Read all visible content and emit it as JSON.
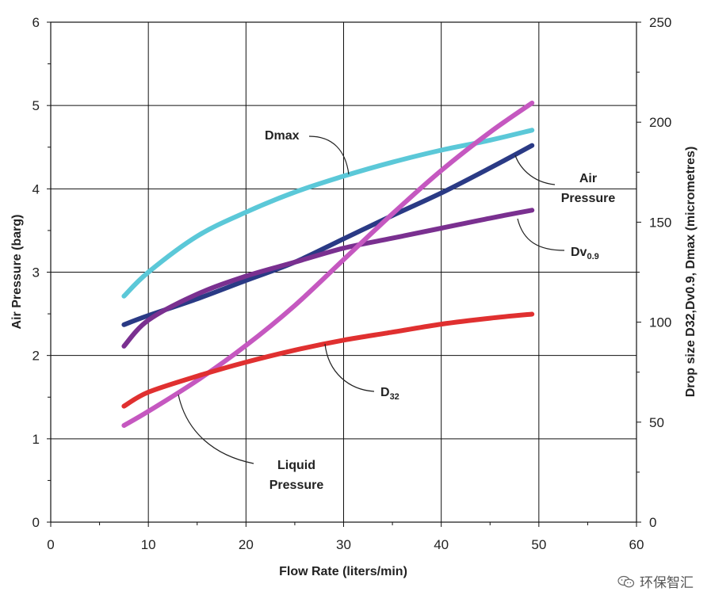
{
  "chart_data": {
    "type": "line",
    "xlabel": "Flow Rate (liters/min)",
    "ylabel": "Air Pressure (barg)",
    "y2label": "Drop size D32,Dv0.9, Dmax (micrometres)",
    "xlim": [
      0,
      60
    ],
    "ylim": [
      0,
      6
    ],
    "y2lim": [
      0,
      250
    ],
    "x_ticks": [
      "0",
      "10",
      "20",
      "30",
      "40",
      "50",
      "60"
    ],
    "y_ticks": [
      "0",
      "1",
      "2",
      "3",
      "4",
      "5",
      "6"
    ],
    "y2_ticks": [
      "0",
      "50",
      "100",
      "150",
      "200",
      "250"
    ],
    "grid": true,
    "series": [
      {
        "name": "Dmax",
        "color": "#5bc8d8",
        "axis": "right",
        "x": [
          7.5,
          10,
          15,
          20,
          25,
          30,
          35,
          40,
          45,
          49.3
        ],
        "values": [
          113,
          125,
          143,
          155,
          165,
          173,
          180,
          186,
          191,
          196
        ]
      },
      {
        "name": "Air Pressure",
        "color": "#2a3a85",
        "axis": "left",
        "x": [
          7.5,
          10,
          15,
          20,
          25,
          30,
          35,
          40,
          45,
          49.3
        ],
        "values": [
          2.37,
          2.48,
          2.68,
          2.9,
          3.12,
          3.4,
          3.68,
          3.95,
          4.25,
          4.52
        ]
      },
      {
        "name": "Dv0.9",
        "color": "#7a3090",
        "axis": "right",
        "x": [
          7.5,
          10,
          15,
          20,
          25,
          30,
          35,
          40,
          45,
          49.3
        ],
        "values": [
          88,
          101,
          114,
          123,
          130,
          137,
          142,
          147,
          152,
          156
        ]
      },
      {
        "name": "Liquid Pressure",
        "color": "#c558c0",
        "axis": "left",
        "x": [
          7.5,
          10,
          15,
          20,
          25,
          30,
          35,
          40,
          45,
          49.3
        ],
        "values": [
          1.16,
          1.33,
          1.7,
          2.12,
          2.6,
          3.15,
          3.7,
          4.22,
          4.68,
          5.03
        ]
      },
      {
        "name": "D32",
        "color": "#e03030",
        "axis": "right",
        "x": [
          7.5,
          10,
          15,
          20,
          25,
          30,
          35,
          40,
          45,
          49.3
        ],
        "values": [
          58,
          65,
          73,
          80,
          86,
          91,
          95,
          99,
          102,
          104
        ]
      }
    ],
    "annotations": [
      {
        "text": "Dmax"
      },
      {
        "text": "Air"
      },
      {
        "text": "Pressure"
      },
      {
        "text": "Dv",
        "sub": "0.9"
      },
      {
        "text": "D",
        "sub": "32"
      },
      {
        "text": "Liquid"
      },
      {
        "text": "Pressure"
      }
    ]
  },
  "watermark": {
    "text": "环保智汇",
    "icon": "wechat-icon"
  }
}
